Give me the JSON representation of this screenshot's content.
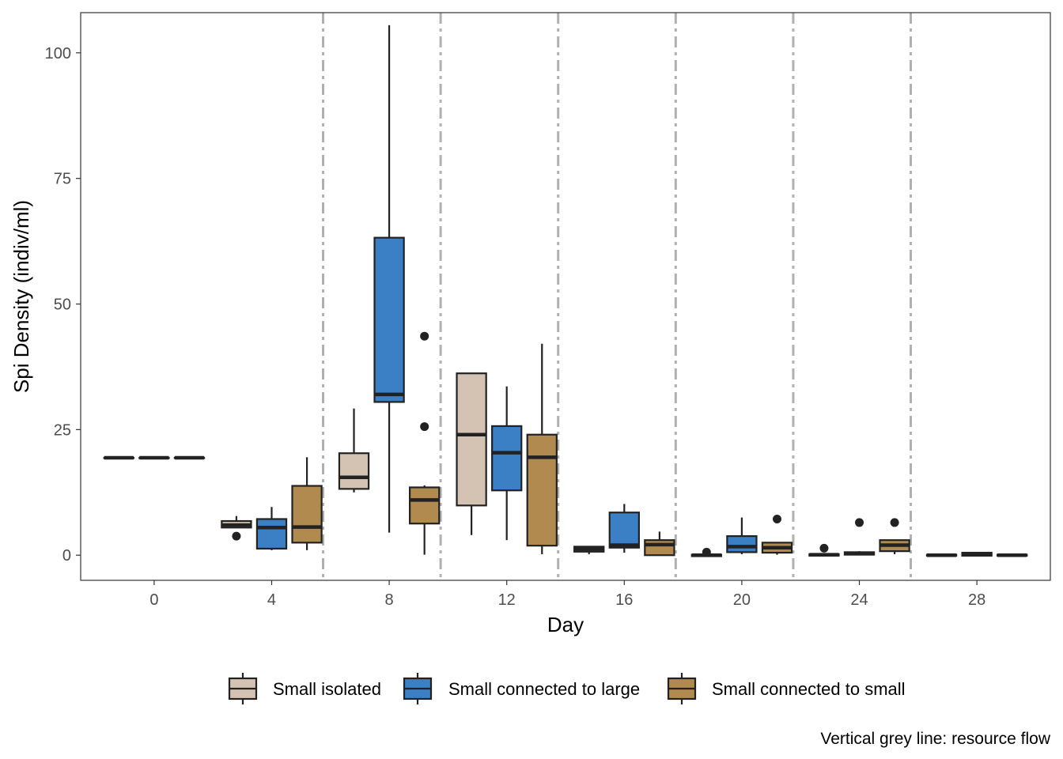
{
  "chart_data": {
    "type": "boxplot",
    "xlabel": "Day",
    "ylabel": "Spi Density (indiv/ml)",
    "caption": "Vertical grey line: resource flow",
    "x_ticks": [
      "0",
      "4",
      "8",
      "12",
      "16",
      "20",
      "24",
      "28"
    ],
    "y_ticks": [
      0,
      25,
      50,
      75,
      100
    ],
    "ylim": [
      -5,
      108
    ],
    "xlim": [
      -2.5,
      30.5
    ],
    "grid": false,
    "legend_position": "bottom",
    "resource_flow_days": [
      5.75,
      9.75,
      13.75,
      17.75,
      21.75,
      25.75
    ],
    "series": [
      {
        "name": "Small isolated",
        "color": "#d4c3b3",
        "boxes": [
          {
            "day": 0,
            "q1": 19.4,
            "median": 19.4,
            "q3": 19.4,
            "whisker_low": 19.4,
            "whisker_high": 19.4,
            "outliers": []
          },
          {
            "day": 4,
            "q1": 5.5,
            "median": 6.0,
            "q3": 6.8,
            "whisker_low": 5.5,
            "whisker_high": 7.8,
            "outliers": [
              3.8
            ]
          },
          {
            "day": 8,
            "q1": 13.2,
            "median": 15.5,
            "q3": 20.3,
            "whisker_low": 12.5,
            "whisker_high": 29.2,
            "outliers": []
          },
          {
            "day": 12,
            "q1": 9.9,
            "median": 24.0,
            "q3": 36.2,
            "whisker_low": 4.0,
            "whisker_high": 36.2,
            "outliers": []
          },
          {
            "day": 16,
            "q1": 0.7,
            "median": 1.2,
            "q3": 1.7,
            "whisker_low": 0.2,
            "whisker_high": 1.8,
            "outliers": []
          },
          {
            "day": 20,
            "q1": -0.2,
            "median": 0.0,
            "q3": 0.1,
            "whisker_low": -0.3,
            "whisker_high": 0.2,
            "outliers": [
              0.6
            ]
          },
          {
            "day": 24,
            "q1": -0.1,
            "median": 0.1,
            "q3": 0.2,
            "whisker_low": -0.2,
            "whisker_high": 0.3,
            "outliers": [
              1.4
            ]
          },
          {
            "day": 28,
            "q1": -0.1,
            "median": 0.0,
            "q3": 0.1,
            "whisker_low": -0.2,
            "whisker_high": 0.2,
            "outliers": []
          }
        ]
      },
      {
        "name": "Small connected to large",
        "color": "#3b7fc4",
        "boxes": [
          {
            "day": 0,
            "q1": 19.4,
            "median": 19.4,
            "q3": 19.4,
            "whisker_low": 19.4,
            "whisker_high": 19.4,
            "outliers": []
          },
          {
            "day": 4,
            "q1": 1.3,
            "median": 5.5,
            "q3": 7.2,
            "whisker_low": 1.0,
            "whisker_high": 9.6,
            "outliers": []
          },
          {
            "day": 8,
            "q1": 30.5,
            "median": 32.0,
            "q3": 63.2,
            "whisker_low": 4.5,
            "whisker_high": 105.5,
            "outliers": []
          },
          {
            "day": 12,
            "q1": 12.9,
            "median": 20.4,
            "q3": 25.7,
            "whisker_low": 3.0,
            "whisker_high": 33.6,
            "outliers": []
          },
          {
            "day": 16,
            "q1": 1.5,
            "median": 2.0,
            "q3": 8.5,
            "whisker_low": 0.5,
            "whisker_high": 10.2,
            "outliers": []
          },
          {
            "day": 20,
            "q1": 0.6,
            "median": 1.7,
            "q3": 3.8,
            "whisker_low": 0.2,
            "whisker_high": 7.5,
            "outliers": []
          },
          {
            "day": 24,
            "q1": 0.1,
            "median": 0.4,
            "q3": 0.6,
            "whisker_low": 0.0,
            "whisker_high": 0.8,
            "outliers": [
              6.5
            ]
          },
          {
            "day": 28,
            "q1": -0.1,
            "median": 0.1,
            "q3": 0.5,
            "whisker_low": -0.2,
            "whisker_high": 0.6,
            "outliers": []
          }
        ]
      },
      {
        "name": "Small connected to small",
        "color": "#b08a4e",
        "boxes": [
          {
            "day": 0,
            "q1": 19.4,
            "median": 19.4,
            "q3": 19.4,
            "whisker_low": 19.4,
            "whisker_high": 19.4,
            "outliers": []
          },
          {
            "day": 4,
            "q1": 2.5,
            "median": 5.6,
            "q3": 13.8,
            "whisker_low": 1.0,
            "whisker_high": 19.5,
            "outliers": []
          },
          {
            "day": 8,
            "q1": 6.3,
            "median": 11.0,
            "q3": 13.5,
            "whisker_low": 0.1,
            "whisker_high": 13.9,
            "outliers": [
              25.6,
              43.6
            ]
          },
          {
            "day": 12,
            "q1": 1.9,
            "median": 19.5,
            "q3": 24.0,
            "whisker_low": 0.2,
            "whisker_high": 42.1,
            "outliers": []
          },
          {
            "day": 16,
            "q1": 0.0,
            "median": 2.1,
            "q3": 3.0,
            "whisker_low": 0.0,
            "whisker_high": 4.7,
            "outliers": []
          },
          {
            "day": 20,
            "q1": 0.5,
            "median": 1.5,
            "q3": 2.5,
            "whisker_low": 0.1,
            "whisker_high": 2.6,
            "outliers": [
              7.2
            ]
          },
          {
            "day": 24,
            "q1": 0.8,
            "median": 2.0,
            "q3": 3.0,
            "whisker_low": 0.2,
            "whisker_high": 3.1,
            "outliers": [
              6.5
            ]
          },
          {
            "day": 28,
            "q1": -0.1,
            "median": 0.0,
            "q3": 0.1,
            "whisker_low": -0.2,
            "whisker_high": 0.2,
            "outliers": []
          }
        ]
      }
    ]
  }
}
